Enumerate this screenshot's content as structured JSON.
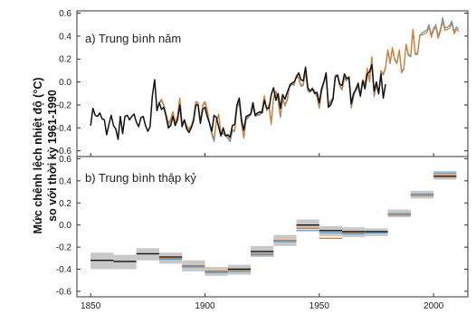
{
  "chart_data": {
    "type": "line",
    "ylabel": [
      "Mức chênh lệch nhiệt độ (°C)",
      "so với thời kỳ 1961-1990"
    ],
    "x_ticks": [
      1850,
      1900,
      1950,
      2000
    ],
    "x_range": [
      1844,
      2015
    ],
    "colors": {
      "black": "#111111",
      "orange": "#e07b28",
      "blue": "#4aa8e0",
      "grey_band": "#c8c8c8"
    },
    "panels": [
      {
        "title": "a) Trung bình năm",
        "ylim": [
          -0.65,
          0.62
        ],
        "y_ticks": [
          -0.6,
          -0.4,
          -0.2,
          0.0,
          0.2,
          0.4,
          0.6
        ],
        "y_tick_labels": [
          "-0.6",
          "-0.4",
          "-0.2",
          "0.0",
          "0.2",
          "0.4",
          "0.6"
        ],
        "series": [
          {
            "color_key": "black",
            "start_year": 1850,
            "values": [
              -0.38,
              -0.23,
              -0.29,
              -0.3,
              -0.27,
              -0.32,
              -0.33,
              -0.46,
              -0.37,
              -0.29,
              -0.38,
              -0.41,
              -0.5,
              -0.3,
              -0.45,
              -0.3,
              -0.29,
              -0.33,
              -0.3,
              -0.28,
              -0.35,
              -0.39,
              -0.31,
              -0.3,
              -0.38,
              -0.43,
              -0.39,
              -0.12,
              0.02,
              -0.25,
              -0.18,
              -0.24,
              -0.22,
              -0.3,
              -0.4,
              -0.38,
              -0.3,
              -0.38,
              -0.33,
              -0.2,
              -0.39,
              -0.33,
              -0.41,
              -0.44,
              -0.4,
              -0.34,
              -0.2,
              -0.2,
              -0.36,
              -0.24,
              -0.22,
              -0.3,
              -0.36,
              -0.43,
              -0.29,
              -0.31,
              -0.39,
              -0.47,
              -0.4,
              -0.47,
              -0.46,
              -0.48,
              -0.38,
              -0.37,
              -0.2,
              -0.14,
              -0.33,
              -0.42,
              -0.3,
              -0.29,
              -0.28,
              -0.18,
              -0.29,
              -0.27,
              -0.26,
              -0.27,
              -0.16,
              -0.23,
              -0.23,
              -0.11,
              -0.05,
              -0.16,
              -0.1,
              -0.23,
              -0.11,
              -0.15,
              -0.09,
              -0.04,
              -0.01,
              0.0,
              0.04,
              0.08,
              0.02,
              0.01,
              0.13,
              -0.05,
              -0.08,
              -0.06,
              -0.1,
              -0.09,
              -0.18,
              -0.06,
              0.0,
              0.08,
              -0.22,
              -0.2,
              -0.15,
              0.04,
              0.06,
              -0.02,
              -0.03,
              0.07,
              0.03,
              0.04,
              -0.19,
              -0.1,
              -0.07,
              -0.01,
              -0.12,
              0.01,
              -0.06,
              0.07,
              0.09,
              0.15,
              -0.08,
              0.0,
              -0.1,
              0.07,
              -0.14,
              -0.02
            ]
          },
          {
            "color_key": "orange",
            "start_year": 1880,
            "values": [
              -0.18,
              -0.15,
              -0.2,
              -0.28,
              -0.36,
              -0.32,
              -0.26,
              -0.35,
              -0.3,
              -0.14,
              -0.36,
              -0.33,
              -0.38,
              -0.41,
              -0.38,
              -0.32,
              -0.17,
              -0.18,
              -0.35,
              -0.2,
              -0.17,
              -0.24,
              -0.36,
              -0.44,
              -0.5,
              -0.33,
              -0.28,
              -0.45,
              -0.44,
              -0.46,
              -0.48,
              -0.5,
              -0.42,
              -0.42,
              -0.22,
              -0.16,
              -0.36,
              -0.48,
              -0.32,
              -0.3,
              -0.28,
              -0.21,
              -0.29,
              -0.28,
              -0.28,
              -0.24,
              -0.12,
              -0.24,
              -0.2,
              -0.36,
              -0.13,
              -0.08,
              -0.15,
              -0.3,
              -0.14,
              -0.2,
              -0.15,
              -0.02,
              -0.01,
              -0.02,
              0.06,
              0.04,
              -0.03,
              -0.02,
              0.1,
              -0.07,
              -0.08,
              -0.05,
              -0.08,
              -0.12,
              -0.22,
              -0.08,
              0.0,
              0.06,
              -0.2,
              -0.16,
              -0.14,
              0.06,
              0.06,
              -0.03,
              -0.06,
              0.04,
              0.02,
              0.05,
              -0.22,
              -0.12,
              -0.05,
              -0.04,
              -0.12,
              0.02,
              -0.01,
              0.12,
              0.01,
              0.22,
              -0.12,
              -0.02,
              -0.1,
              0.1,
              0.07,
              0.13,
              0.28,
              0.17,
              0.3,
              0.2,
              0.17,
              0.28,
              0.09,
              0.12,
              0.33,
              0.24,
              0.23,
              0.46,
              0.25,
              0.25,
              0.41,
              0.41,
              0.42,
              0.43,
              0.48,
              0.39,
              0.45,
              0.48,
              0.38,
              0.44,
              0.53,
              0.45,
              0.46,
              0.47,
              0.51,
              0.42,
              0.46,
              0.44
            ]
          },
          {
            "color_key": "blue",
            "start_year": 1880,
            "values": [
              -0.19,
              -0.16,
              -0.21,
              -0.29,
              -0.39,
              -0.33,
              -0.27,
              -0.37,
              -0.31,
              -0.15,
              -0.37,
              -0.34,
              -0.39,
              -0.42,
              -0.39,
              -0.33,
              -0.18,
              -0.19,
              -0.36,
              -0.21,
              -0.18,
              -0.25,
              -0.37,
              -0.46,
              -0.52,
              -0.34,
              -0.29,
              -0.46,
              -0.45,
              -0.47,
              -0.49,
              -0.52,
              -0.43,
              -0.43,
              -0.23,
              -0.17,
              -0.37,
              -0.49,
              -0.33,
              -0.31,
              -0.29,
              -0.22,
              -0.3,
              -0.29,
              -0.29,
              -0.25,
              -0.13,
              -0.25,
              -0.21,
              -0.37,
              -0.14,
              -0.09,
              -0.16,
              -0.31,
              -0.15,
              -0.21,
              -0.16,
              -0.03,
              -0.02,
              -0.03,
              0.05,
              0.03,
              -0.04,
              -0.03,
              0.09,
              -0.08,
              -0.09,
              -0.06,
              -0.09,
              -0.13,
              -0.23,
              -0.09,
              -0.01,
              0.05,
              -0.21,
              -0.17,
              -0.15,
              0.05,
              0.05,
              -0.04,
              -0.07,
              0.03,
              0.01,
              0.04,
              -0.23,
              -0.13,
              -0.06,
              -0.05,
              -0.13,
              0.01,
              -0.02,
              0.11,
              0.0,
              0.21,
              -0.13,
              -0.03,
              -0.11,
              0.09,
              0.06,
              0.12,
              0.27,
              0.16,
              0.29,
              0.19,
              0.16,
              0.27,
              0.08,
              0.11,
              0.32,
              0.23,
              0.22,
              0.45,
              0.24,
              0.24,
              0.4,
              0.43,
              0.44,
              0.45,
              0.5,
              0.41,
              0.47,
              0.5,
              0.4,
              0.46,
              0.56,
              0.47,
              0.48,
              0.49,
              0.53,
              0.44,
              0.48,
              0.46
            ]
          }
        ]
      },
      {
        "title": "b) Trung bình thập kỷ",
        "ylim": [
          -0.65,
          0.62
        ],
        "y_ticks": [
          -0.6,
          -0.4,
          -0.2,
          0.0,
          0.2,
          0.4,
          0.6
        ],
        "y_tick_labels": [
          "-0.6",
          "-0.4",
          "-0.2",
          "0.0",
          "0.2",
          "0.4",
          "0.6"
        ],
        "decades": [
          {
            "start": 1850,
            "end": 1860,
            "low": -0.4,
            "high": -0.25,
            "black": -0.32,
            "orange": null,
            "blue": null
          },
          {
            "start": 1860,
            "end": 1870,
            "low": -0.4,
            "high": -0.27,
            "black": -0.33,
            "orange": null,
            "blue": null
          },
          {
            "start": 1870,
            "end": 1880,
            "low": -0.32,
            "high": -0.21,
            "black": -0.26,
            "orange": null,
            "blue": null
          },
          {
            "start": 1880,
            "end": 1890,
            "low": -0.35,
            "high": -0.25,
            "black": -0.29,
            "orange": -0.3,
            "blue": -0.31
          },
          {
            "start": 1890,
            "end": 1900,
            "low": -0.42,
            "high": -0.32,
            "black": -0.37,
            "orange": -0.37,
            "blue": -0.38
          },
          {
            "start": 1900,
            "end": 1910,
            "low": -0.46,
            "high": -0.38,
            "black": -0.42,
            "orange": -0.42,
            "blue": -0.43
          },
          {
            "start": 1910,
            "end": 1920,
            "low": -0.45,
            "high": -0.36,
            "black": -0.4,
            "orange": -0.41,
            "blue": -0.42
          },
          {
            "start": 1920,
            "end": 1930,
            "low": -0.29,
            "high": -0.19,
            "black": -0.24,
            "orange": -0.26,
            "blue": -0.27
          },
          {
            "start": 1930,
            "end": 1940,
            "low": -0.19,
            "high": -0.09,
            "black": -0.14,
            "orange": -0.14,
            "blue": -0.15
          },
          {
            "start": 1940,
            "end": 1950,
            "low": -0.04,
            "high": 0.05,
            "black": 0.0,
            "orange": -0.03,
            "blue": -0.05
          },
          {
            "start": 1950,
            "end": 1960,
            "low": -0.1,
            "high": -0.01,
            "black": -0.05,
            "orange": -0.12,
            "blue": -0.07
          },
          {
            "start": 1960,
            "end": 1970,
            "low": -0.11,
            "high": -0.02,
            "black": -0.06,
            "orange": -0.07,
            "blue": -0.08
          },
          {
            "start": 1970,
            "end": 1980,
            "low": -0.1,
            "high": -0.03,
            "black": -0.06,
            "orange": -0.07,
            "blue": -0.07
          },
          {
            "start": 1980,
            "end": 1990,
            "low": 0.07,
            "high": 0.14,
            "black": 0.1,
            "orange": 0.09,
            "blue": 0.1
          },
          {
            "start": 1990,
            "end": 2000,
            "low": 0.24,
            "high": 0.31,
            "black": 0.27,
            "orange": 0.27,
            "blue": 0.28
          },
          {
            "start": 2000,
            "end": 2010,
            "low": 0.41,
            "high": 0.49,
            "black": 0.44,
            "orange": 0.45,
            "blue": 0.47
          }
        ]
      }
    ]
  }
}
